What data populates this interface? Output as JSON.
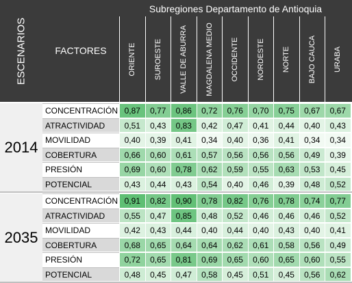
{
  "header": {
    "escenarios": "ESCENARIOS",
    "factores": "FACTORES",
    "group_title": "Subregiones Departamento de Antioquia"
  },
  "colors": {
    "header_bg": "#3b3b3b",
    "factor_bg_light": "#d9d9d9",
    "factor_bg_white": "#ffffff",
    "green_dark": "#5fbf74",
    "green_light": "#f2faf3",
    "year_bg": "#f0f0f0"
  },
  "chart_data": {
    "type": "table",
    "title": "Subregiones Departamento de Antioquia",
    "columns": [
      "ORIENTE",
      "SUROESTE",
      "VALLE DE ABURRA",
      "MAGDALENA MEDIO",
      "OCCIDENTE",
      "NORDESTE",
      "NORTE",
      "BAJO CAUCA",
      "URABA"
    ],
    "scenarios": [
      {
        "year": "2014",
        "rows": [
          {
            "factor": "CONCENTRACIÓN",
            "values": [
              "0,87",
              "0,77",
              "0,86",
              "0,72",
              "0,76",
              "0,70",
              "0,75",
              "0,67",
              "0,67"
            ]
          },
          {
            "factor": "ATRACTIVIDAD",
            "values": [
              "0,51",
              "0,43",
              "0,83",
              "0,42",
              "0,47",
              "0,41",
              "0,44",
              "0,40",
              "0,43"
            ]
          },
          {
            "factor": "MOVILIDAD",
            "values": [
              "0,40",
              "0,39",
              "0,41",
              "0,34",
              "0,40",
              "0,36",
              "0,41",
              "0,34",
              "0,34"
            ]
          },
          {
            "factor": "COBERTURA",
            "values": [
              "0,66",
              "0,60",
              "0,61",
              "0,57",
              "0,56",
              "0,56",
              "0,56",
              "0,49",
              "0,39"
            ]
          },
          {
            "factor": "PRESIÓN",
            "values": [
              "0,69",
              "0,60",
              "0,78",
              "0,62",
              "0,59",
              "0,55",
              "0,63",
              "0,53",
              "0,45"
            ]
          },
          {
            "factor": "POTENCIAL",
            "values": [
              "0,43",
              "0,44",
              "0,43",
              "0,54",
              "0,40",
              "0,46",
              "0,39",
              "0,48",
              "0,52"
            ]
          }
        ]
      },
      {
        "year": "2035",
        "rows": [
          {
            "factor": "CONCENTRACIÓN",
            "values": [
              "0,91",
              "0,82",
              "0,90",
              "0,78",
              "0,82",
              "0,76",
              "0,78",
              "0,74",
              "0,77"
            ]
          },
          {
            "factor": "ATRACTIVIDAD",
            "values": [
              "0,55",
              "0,47",
              "0,85",
              "0,48",
              "0,52",
              "0,46",
              "0,46",
              "0,46",
              "0,52"
            ]
          },
          {
            "factor": "MOVILIDAD",
            "values": [
              "0,42",
              "0,43",
              "0,44",
              "0,40",
              "0,44",
              "0,40",
              "0,43",
              "0,40",
              "0,41"
            ]
          },
          {
            "factor": "COBERTURA",
            "values": [
              "0,68",
              "0,65",
              "0,64",
              "0,64",
              "0,62",
              "0,61",
              "0,58",
              "0,56",
              "0,49"
            ]
          },
          {
            "factor": "PRESIÓN",
            "values": [
              "0,72",
              "0,65",
              "0,81",
              "0,69",
              "0,65",
              "0,60",
              "0,65",
              "0,60",
              "0,55"
            ]
          },
          {
            "factor": "POTENCIAL",
            "values": [
              "0,48",
              "0,45",
              "0,47",
              "0,58",
              "0,45",
              "0,51",
              "0,45",
              "0,56",
              "0,62"
            ]
          }
        ]
      }
    ]
  }
}
